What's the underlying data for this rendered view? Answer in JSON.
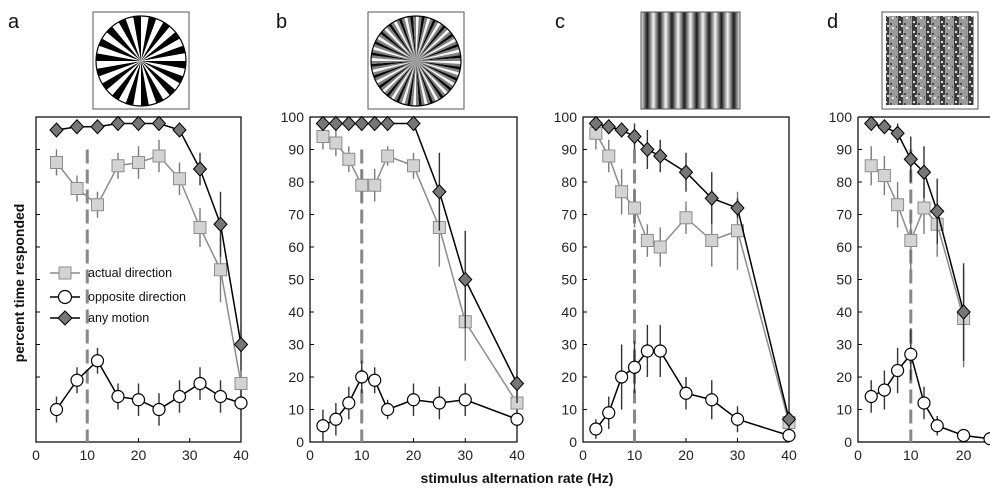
{
  "figure": {
    "xlabel": "stimulus alternation rate (Hz)",
    "ylabel": "percent time responded"
  },
  "legend": [
    {
      "label": "actual direction",
      "marker": "square"
    },
    {
      "label": "opposite direction",
      "marker": "circle"
    },
    {
      "label": "any motion",
      "marker": "diamond"
    }
  ],
  "colors": {
    "actual_direction": "#8c8c8c",
    "actual_fill": "#d3d3d3",
    "opposite_direction": "#000000",
    "any_motion": "#000000",
    "any_fill": "#777777",
    "reference_line": "#888888"
  },
  "chart_data": [
    {
      "panel": "a",
      "type": "line",
      "stimulus": "radial pinwheel (square-wave)",
      "xlim": [
        0,
        40
      ],
      "ylim": [
        0,
        100
      ],
      "xticks": [
        0,
        10,
        20,
        30,
        40
      ],
      "yticks": [],
      "reference_x": 10,
      "series": [
        {
          "name": "actual direction",
          "x": [
            4,
            8,
            12,
            16,
            20,
            24,
            28,
            32,
            36,
            40
          ],
          "y": [
            86,
            78,
            73,
            85,
            86,
            88,
            81,
            66,
            53,
            18
          ],
          "err": [
            4,
            4,
            4,
            4,
            5,
            5,
            5,
            6,
            10,
            4
          ]
        },
        {
          "name": "opposite direction",
          "x": [
            4,
            8,
            12,
            16,
            20,
            24,
            28,
            32,
            36,
            40
          ],
          "y": [
            10,
            19,
            25,
            14,
            13,
            10,
            14,
            18,
            14,
            12
          ],
          "err": [
            4,
            4,
            4,
            4,
            5,
            5,
            5,
            5,
            5,
            4
          ]
        },
        {
          "name": "any motion",
          "x": [
            4,
            8,
            12,
            16,
            20,
            24,
            28,
            32,
            36,
            40
          ],
          "y": [
            96,
            97,
            97,
            98,
            98,
            98,
            96,
            84,
            67,
            30
          ],
          "err": [
            0,
            0,
            0,
            0,
            0,
            0,
            0,
            5,
            10,
            6
          ]
        }
      ]
    },
    {
      "panel": "b",
      "type": "line",
      "stimulus": "radial pinwheel (sinusoidal)",
      "xlim": [
        0,
        40
      ],
      "ylim": [
        0,
        100
      ],
      "xticks": [
        0,
        10,
        20,
        30,
        40
      ],
      "yticks": [
        0,
        10,
        20,
        30,
        40,
        50,
        60,
        70,
        80,
        90,
        100
      ],
      "reference_x": 10,
      "series": [
        {
          "name": "actual direction",
          "x": [
            2.5,
            5,
            7.5,
            10,
            12.5,
            15,
            20,
            25,
            30,
            40
          ],
          "y": [
            94,
            92,
            87,
            79,
            79,
            88,
            85,
            66,
            37,
            12
          ],
          "err": [
            4,
            4,
            4,
            5,
            5,
            3,
            4,
            12,
            12,
            4
          ]
        },
        {
          "name": "opposite direction",
          "x": [
            2.5,
            5,
            7.5,
            10,
            12.5,
            15,
            20,
            25,
            30,
            40
          ],
          "y": [
            5,
            7,
            12,
            20,
            19,
            10,
            13,
            12,
            13,
            7
          ],
          "err": [
            5,
            5,
            5,
            5,
            4,
            3,
            5,
            5,
            5,
            3
          ]
        },
        {
          "name": "any motion",
          "x": [
            2.5,
            5,
            7.5,
            10,
            12.5,
            15,
            20,
            25,
            30,
            40
          ],
          "y": [
            98,
            98,
            98,
            98,
            98,
            98,
            98,
            77,
            50,
            18
          ],
          "err": [
            0,
            0,
            0,
            0,
            0,
            0,
            0,
            12,
            15,
            6
          ]
        }
      ]
    },
    {
      "panel": "c",
      "type": "line",
      "stimulus": "vertical grating",
      "xlim": [
        0,
        40
      ],
      "ylim": [
        0,
        100
      ],
      "xticks": [
        0,
        10,
        20,
        30,
        40
      ],
      "yticks": [
        0,
        10,
        20,
        30,
        40,
        50,
        60,
        70,
        80,
        90,
        100
      ],
      "reference_x": 10,
      "series": [
        {
          "name": "actual direction",
          "x": [
            2.5,
            5,
            7.5,
            10,
            12.5,
            15,
            20,
            25,
            30,
            40
          ],
          "y": [
            95,
            88,
            77,
            72,
            62,
            60,
            69,
            62,
            65,
            6
          ],
          "err": [
            5,
            5,
            7,
            6,
            5,
            6,
            5,
            8,
            12,
            3
          ]
        },
        {
          "name": "opposite direction",
          "x": [
            2.5,
            5,
            7.5,
            10,
            12.5,
            15,
            20,
            25,
            30,
            40
          ],
          "y": [
            4,
            9,
            20,
            23,
            28,
            28,
            15,
            13,
            7,
            2
          ],
          "err": [
            3,
            5,
            10,
            8,
            8,
            8,
            5,
            6,
            4,
            2
          ]
        },
        {
          "name": "any motion",
          "x": [
            2.5,
            5,
            7.5,
            10,
            12.5,
            15,
            20,
            25,
            30,
            40
          ],
          "y": [
            98,
            97,
            96,
            94,
            90,
            88,
            83,
            75,
            72,
            7
          ],
          "err": [
            0,
            0,
            0,
            4,
            6,
            5,
            6,
            8,
            3,
            3
          ]
        }
      ]
    },
    {
      "panel": "d",
      "type": "line",
      "stimulus": "noisy grating",
      "xlim": [
        0,
        25
      ],
      "ylim": [
        0,
        100
      ],
      "xticks": [
        0,
        10,
        20
      ],
      "yticks": [
        0,
        10,
        20,
        30,
        40,
        50,
        60,
        70,
        80,
        90,
        100
      ],
      "reference_x": 10,
      "series": [
        {
          "name": "actual direction",
          "x": [
            2.5,
            5,
            7.5,
            10,
            12.5,
            15,
            20
          ],
          "y": [
            85,
            82,
            73,
            62,
            72,
            67,
            38
          ],
          "err": [
            6,
            6,
            7,
            9,
            8,
            10,
            15
          ]
        },
        {
          "name": "opposite direction",
          "x": [
            2.5,
            5,
            7.5,
            10,
            12.5,
            15,
            20,
            25
          ],
          "y": [
            14,
            16,
            22,
            27,
            12,
            5,
            2,
            1
          ],
          "err": [
            5,
            6,
            7,
            8,
            5,
            3,
            2,
            1
          ]
        },
        {
          "name": "any motion",
          "x": [
            2.5,
            5,
            7.5,
            10,
            12.5,
            15,
            20
          ],
          "y": [
            98,
            97,
            95,
            87,
            83,
            71,
            40
          ],
          "err": [
            0,
            0,
            3,
            7,
            8,
            10,
            15
          ]
        }
      ]
    }
  ]
}
